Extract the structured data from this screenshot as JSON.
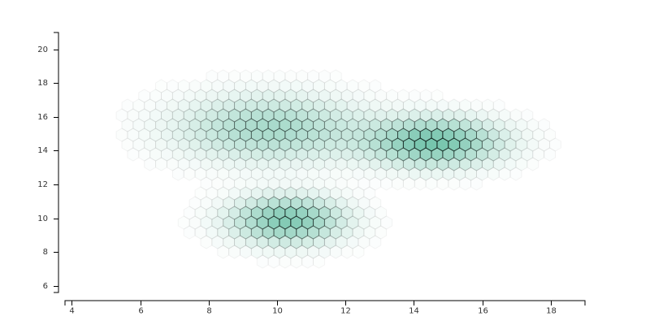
{
  "chart_data": {
    "type": "heatmap",
    "subtype": "hexbin",
    "title": "",
    "xlabel": "",
    "ylabel": "",
    "xlim": [
      3.8,
      19
    ],
    "ylim": [
      5.6,
      21
    ],
    "x_ticks": [
      "4",
      "6",
      "8",
      "10",
      "12",
      "14",
      "16",
      "18"
    ],
    "y_ticks": [
      "6",
      "8",
      "10",
      "12",
      "14",
      "16",
      "18",
      "20"
    ],
    "grid": false,
    "legend": "none",
    "color": "#1b9e77",
    "max_intensity": 0.6,
    "clusters": [
      {
        "name": "upper-left",
        "center": [
          9.8,
          15.3
        ],
        "spread": [
          1.8,
          1.3
        ],
        "peak": 0.38
      },
      {
        "name": "right",
        "center": [
          14.6,
          14.5
        ],
        "spread": [
          1.3,
          0.95
        ],
        "peak": 0.6
      },
      {
        "name": "bottom",
        "center": [
          10.3,
          9.9
        ],
        "spread": [
          1.1,
          0.95
        ],
        "peak": 0.55
      }
    ]
  }
}
